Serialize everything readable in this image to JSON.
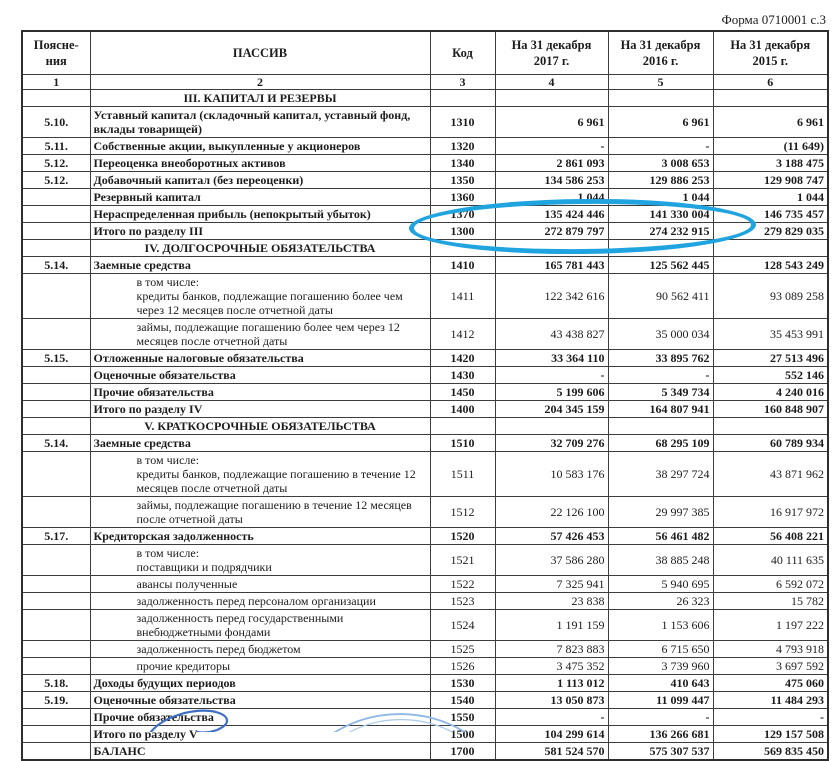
{
  "form_label": "Форма 0710001 с.3",
  "columns": {
    "note": [
      "Поясне-",
      "ния"
    ],
    "passiv": "ПАССИВ",
    "code": "Код",
    "y2017": [
      "На 31 декабря",
      "2017 г."
    ],
    "y2016": [
      "На 31 декабря",
      "2016 г."
    ],
    "y2015": [
      "На 31 декабря",
      "2015 г."
    ]
  },
  "column_numbers": [
    "1",
    "2",
    "3",
    "4",
    "5",
    "6"
  ],
  "rows": [
    {
      "type": "section",
      "label": "III. КАПИТАЛ И РЕЗЕРВЫ"
    },
    {
      "type": "item",
      "note": "5.10.",
      "label": "Уставный капитал (складочный капитал, уставный фонд, вклады товарищей)",
      "code": "1310",
      "v": [
        "6 961",
        "6 961",
        "6 961"
      ]
    },
    {
      "type": "item",
      "note": "5.11.",
      "label": "Собственные акции, выкупленные у акционеров",
      "code": "1320",
      "v": [
        "-",
        "-",
        "(11 649)"
      ]
    },
    {
      "type": "item",
      "note": "5.12.",
      "label": "Переоценка внеоборотных активов",
      "code": "1340",
      "v": [
        "2 861 093",
        "3 008 653",
        "3 188 475"
      ]
    },
    {
      "type": "item",
      "note": "5.12.",
      "label": "Добавочный капитал (без переоценки)",
      "code": "1350",
      "v": [
        "134 586 253",
        "129 886 253",
        "129 908 747"
      ]
    },
    {
      "type": "item",
      "note": "",
      "label": "Резервный капитал",
      "code": "1360",
      "v": [
        "1 044",
        "1 044",
        "1 044"
      ]
    },
    {
      "type": "item",
      "note": "",
      "label": "Нераспределенная прибыль (непокрытый убыток)",
      "code": "1370",
      "v": [
        "135 424 446",
        "141 330 004",
        "146 735 457"
      ]
    },
    {
      "type": "item",
      "note": "",
      "label": "Итого по разделу III",
      "code": "1300",
      "v": [
        "272 879 797",
        "274 232 915",
        "279 829 035"
      ]
    },
    {
      "type": "section",
      "label": "IV. ДОЛГОСРОЧНЫЕ ОБЯЗАТЕЛЬСТВА"
    },
    {
      "type": "item",
      "note": "5.14.",
      "label": "Заемные средства",
      "code": "1410",
      "v": [
        "165 781 443",
        "125 562 445",
        "128 543 249"
      ]
    },
    {
      "type": "sub",
      "note": "",
      "prefix": "в том числе:",
      "label": "кредиты банков, подлежащие погашению более чем через 12 месяцев после отчетной даты",
      "code": "1411",
      "v": [
        "122 342 616",
        "90 562 411",
        "93 089 258"
      ]
    },
    {
      "type": "sub",
      "note": "",
      "label": "займы, подлежащие погашению более чем через 12 месяцев после отчетной даты",
      "code": "1412",
      "v": [
        "43 438 827",
        "35 000 034",
        "35 453 991"
      ]
    },
    {
      "type": "item",
      "note": "5.15.",
      "label": "Отложенные налоговые обязательства",
      "code": "1420",
      "v": [
        "33 364 110",
        "33 895 762",
        "27 513 496"
      ]
    },
    {
      "type": "item",
      "note": "",
      "label": "Оценочные обязательства",
      "code": "1430",
      "v": [
        "-",
        "-",
        "552 146"
      ]
    },
    {
      "type": "item",
      "note": "",
      "label": "Прочие обязательства",
      "code": "1450",
      "v": [
        "5 199 606",
        "5 349 734",
        "4 240 016"
      ]
    },
    {
      "type": "item",
      "note": "",
      "label": "Итого по разделу IV",
      "code": "1400",
      "v": [
        "204 345 159",
        "164 807 941",
        "160 848 907"
      ]
    },
    {
      "type": "section",
      "label": "V. КРАТКОСРОЧНЫЕ ОБЯЗАТЕЛЬСТВА"
    },
    {
      "type": "item",
      "note": "5.14.",
      "label": "Заемные средства",
      "code": "1510",
      "v": [
        "32 709 276",
        "68 295 109",
        "60 789 934"
      ]
    },
    {
      "type": "sub",
      "note": "",
      "prefix": "в том числе:",
      "label": "кредиты банков, подлежащие погашению в течение 12 месяцев после отчетной даты",
      "code": "1511",
      "v": [
        "10 583 176",
        "38 297 724",
        "43 871 962"
      ]
    },
    {
      "type": "sub",
      "note": "",
      "label": "займы, подлежащие погашению в течение 12 месяцев после отчетной даты",
      "code": "1512",
      "v": [
        "22 126 100",
        "29 997 385",
        "16 917 972"
      ]
    },
    {
      "type": "item",
      "note": "5.17.",
      "label": "Кредиторская задолженность",
      "code": "1520",
      "v": [
        "57 426 453",
        "56 461 482",
        "56 408 221"
      ]
    },
    {
      "type": "sub",
      "note": "",
      "prefix": "в том числе:",
      "label": "поставщики и подрядчики",
      "code": "1521",
      "v": [
        "37 586 280",
        "38 885 248",
        "40 111 635"
      ]
    },
    {
      "type": "sub",
      "note": "",
      "label": "авансы полученные",
      "code": "1522",
      "v": [
        "7 325 941",
        "5 940 695",
        "6 592 072"
      ]
    },
    {
      "type": "sub",
      "note": "",
      "label": "задолженность перед персоналом организации",
      "code": "1523",
      "v": [
        "23 838",
        "26 323",
        "15 782"
      ]
    },
    {
      "type": "sub",
      "note": "",
      "label": "задолженность перед государственными внебюджетными фондами",
      "code": "1524",
      "v": [
        "1 191 159",
        "1 153 606",
        "1 197 222"
      ]
    },
    {
      "type": "sub",
      "note": "",
      "label": "задолженность перед бюджетом",
      "code": "1525",
      "v": [
        "7 823 883",
        "6 715 650",
        "4 793 918"
      ]
    },
    {
      "type": "sub",
      "note": "",
      "label": "прочие кредиторы",
      "code": "1526",
      "v": [
        "3 475 352",
        "3 739 960",
        "3 697 592"
      ]
    },
    {
      "type": "item",
      "note": "5.18.",
      "label": "Доходы будущих периодов",
      "code": "1530",
      "v": [
        "1 113 012",
        "410 643",
        "475 060"
      ]
    },
    {
      "type": "item",
      "note": "5.19.",
      "label": "Оценочные обязательства",
      "code": "1540",
      "v": [
        "13 050 873",
        "11 099 447",
        "11 484 293"
      ]
    },
    {
      "type": "item",
      "note": "",
      "label": "Прочие обязательства",
      "code": "1550",
      "v": [
        "-",
        "-",
        "-"
      ]
    },
    {
      "type": "item",
      "note": "",
      "label": "Итого по разделу V",
      "code": "1500",
      "v": [
        "104 299 614",
        "136 266 681",
        "129 157 508"
      ]
    },
    {
      "type": "item",
      "note": "",
      "label": "БАЛАНС",
      "code": "1700",
      "v": [
        "581 524 570",
        "575 307 537",
        "569 835 450"
      ]
    }
  ],
  "annotations": {
    "highlighted_code": "1300",
    "ellipse_color": "#20a4e0",
    "pen_color": "#3f6fc4",
    "stamp_color": "#8fb9e4"
  }
}
